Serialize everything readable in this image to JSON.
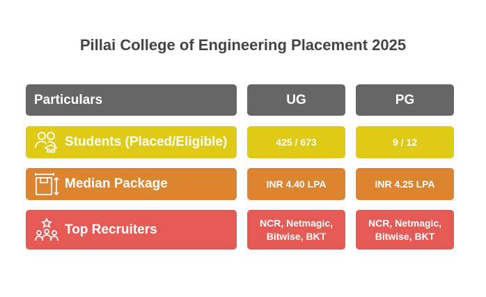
{
  "header": {
    "title": "Pillai College of Engineering Placement 2025"
  },
  "table": {
    "columns": [
      "Particulars",
      "UG",
      "PG"
    ],
    "rows": [
      [
        "Students (Placed/Eligible)",
        "425 / 673",
        "9 / 12"
      ],
      [
        "Median Package",
        "INR 4.40 LPA",
        "INR 4.25 LPA"
      ],
      [
        "Top Recruiters",
        "NCR, Netmagic, Bitwise, BKT",
        "NCR, Netmagic, Bitwise, BKT"
      ]
    ]
  }
}
